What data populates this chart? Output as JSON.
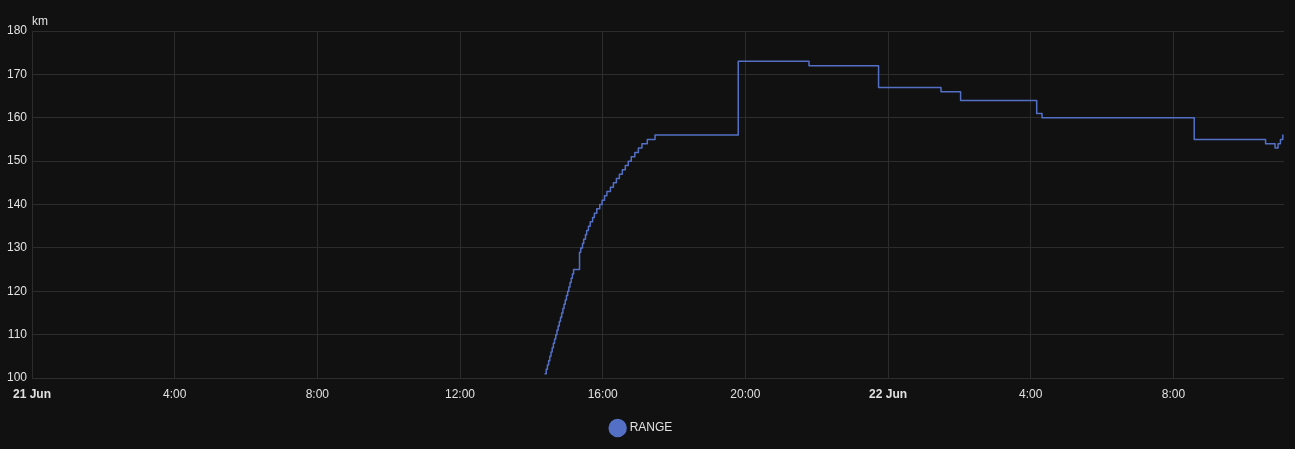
{
  "chart_data": {
    "type": "step",
    "ylabel": "km",
    "x": [
      "--06-21T14:23",
      "--06-21T14:25",
      "--06-21T14:27",
      "--06-21T14:29",
      "--06-21T14:31",
      "--06-21T14:33",
      "--06-21T14:35",
      "--06-21T14:37",
      "--06-21T14:39",
      "--06-21T14:41",
      "--06-21T14:43",
      "--06-21T14:45",
      "--06-21T14:47",
      "--06-21T14:49",
      "--06-21T14:51",
      "--06-21T14:53",
      "--06-21T14:55",
      "--06-21T14:57",
      "--06-21T14:59",
      "--06-21T15:01",
      "--06-21T15:03",
      "--06-21T15:05",
      "--06-21T15:07",
      "--06-21T15:09",
      "--06-21T15:11",
      "--06-21T15:21",
      "--06-21T15:23",
      "--06-21T15:26",
      "--06-21T15:28",
      "--06-21T15:31",
      "--06-21T15:33",
      "--06-21T15:36",
      "--06-21T15:39",
      "--06-21T15:43",
      "--06-21T15:46",
      "--06-21T15:50",
      "--06-21T15:55",
      "--06-21T15:59",
      "--06-21T16:03",
      "--06-21T16:07",
      "--06-21T16:13",
      "--06-21T16:18",
      "--06-21T16:23",
      "--06-21T16:28",
      "--06-21T16:33",
      "--06-21T16:38",
      "--06-21T16:43",
      "--06-21T16:48",
      "--06-21T16:54",
      "--06-21T17:00",
      "--06-21T17:06",
      "--06-21T17:15",
      "--06-21T17:28",
      "--06-21T19:48",
      "--06-21T21:47",
      "--06-21T23:44",
      "--06-22T01:29",
      "--06-22T02:02",
      "--06-22T04:10",
      "--06-22T04:19",
      "--06-22T08:35",
      "--06-22T10:35",
      "--06-22T10:51",
      "--06-22T10:56",
      "--06-22T11:00",
      "--06-22T11:04"
    ],
    "series": [
      {
        "name": "RANGE",
        "color": "#5470c6",
        "values": [
          101,
          102,
          103,
          104,
          105,
          106,
          107,
          108,
          109,
          110,
          111,
          112,
          113,
          114,
          115,
          116,
          117,
          118,
          119,
          120,
          121,
          122,
          123,
          124,
          125,
          129,
          130,
          131,
          132,
          133,
          134,
          135,
          136,
          137,
          138,
          139,
          140,
          141,
          142,
          143,
          144,
          145,
          146,
          147,
          148,
          149,
          150,
          151,
          152,
          153,
          154,
          155,
          156,
          173,
          172,
          167,
          166,
          164,
          161,
          160,
          155,
          154,
          153,
          154,
          155,
          156
        ]
      }
    ],
    "xlim": [
      "--06-21T00:00",
      "--06-22T11:06"
    ],
    "xticks": [
      {
        "value": "--06-21T00:00",
        "label": "21 Jun"
      },
      {
        "value": "--06-21T04:00",
        "label": "4:00"
      },
      {
        "value": "--06-21T08:00",
        "label": "8:00"
      },
      {
        "value": "--06-21T12:00",
        "label": "12:00"
      },
      {
        "value": "--06-21T16:00",
        "label": "16:00"
      },
      {
        "value": "--06-21T20:00",
        "label": "20:00"
      },
      {
        "value": "--06-22T00:00",
        "label": "22 Jun"
      },
      {
        "value": "--06-22T04:00",
        "label": "4:00"
      },
      {
        "value": "--06-22T08:00",
        "label": "8:00"
      }
    ],
    "ylim": [
      100,
      180
    ],
    "yticks": [
      100,
      110,
      120,
      130,
      140,
      150,
      160,
      170,
      180
    ],
    "grid": true,
    "legend": "bottom"
  }
}
